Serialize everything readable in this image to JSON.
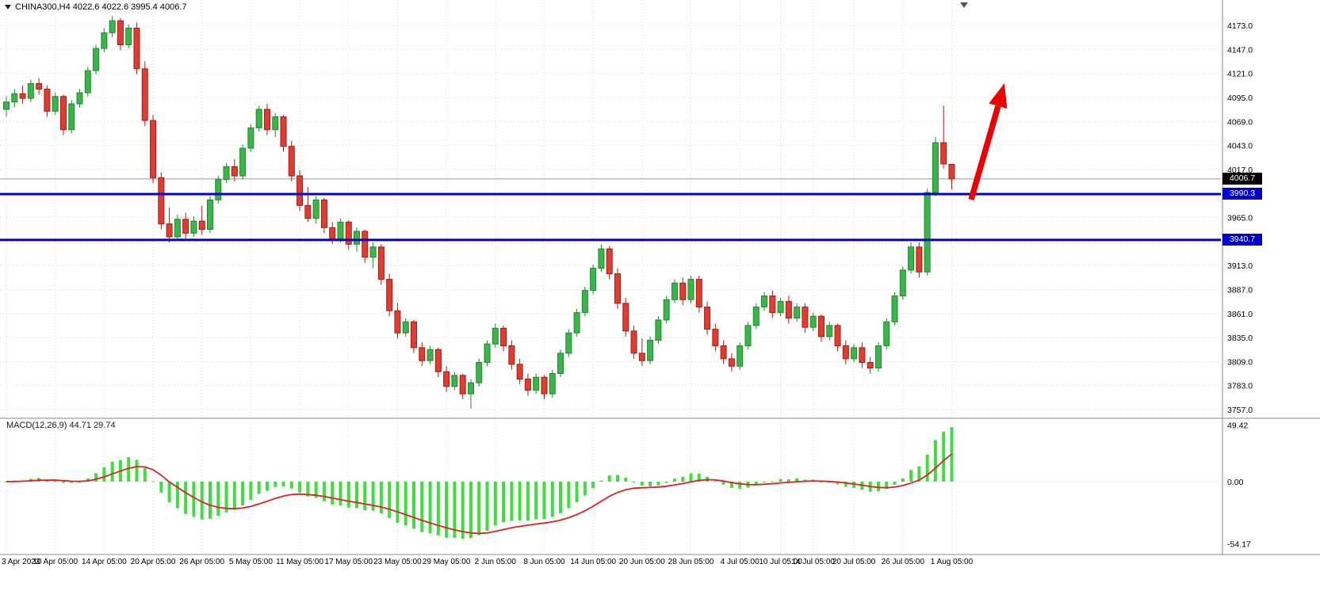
{
  "chart_data": {
    "type": "candlestick",
    "symbol": "CHINA300",
    "timeframe": "H4",
    "header_text": "CHINA300,H4 4022.6 4022.6 3995.4 4006.7",
    "last_candle": {
      "open": "4022.6",
      "high": "4022.6",
      "low": "3995.4",
      "close": "4006.7"
    },
    "price_axis": {
      "labels": [
        "4173.0",
        "4147.0",
        "4121.0",
        "4095.0",
        "4069.0",
        "4043.0",
        "4017.0",
        "3991.0",
        "3965.0",
        "3939.0",
        "3913.0",
        "3887.0",
        "3861.0",
        "3835.0",
        "3809.0",
        "3783.0",
        "3757.0"
      ],
      "min": 3757.0,
      "max": 4173.0,
      "step": 26.0
    },
    "time_axis": {
      "labels": [
        "3 Apr 2023",
        "10 Apr 05:00",
        "14 Apr 05:00",
        "20 Apr 05:00",
        "26 Apr 05:00",
        "5 May 05:00",
        "11 May 05:00",
        "17 May 05:00",
        "23 May 05:00",
        "29 May 05:00",
        "2 Jun 05:00",
        "8 Jun 05:00",
        "14 Jun 05:00",
        "20 Jun 05:00",
        "28 Jun 05:00",
        "4 Jul 05:00",
        "10 Jul 05:00",
        "14 Jul 05:00",
        "20 Jul 05:00",
        "26 Jul 05:00",
        "1 Aug 05:00"
      ],
      "candle_index": [
        0,
        6,
        12,
        18,
        24,
        30,
        36,
        42,
        48,
        54,
        60,
        66,
        72,
        78,
        84,
        90,
        95,
        99,
        104,
        110,
        116
      ]
    },
    "candles": [
      [
        4082,
        4096,
        4074,
        4090
      ],
      [
        4090,
        4104,
        4084,
        4099
      ],
      [
        4099,
        4108,
        4088,
        4094
      ],
      [
        4094,
        4114,
        4090,
        4110
      ],
      [
        4110,
        4116,
        4098,
        4104
      ],
      [
        4104,
        4108,
        4074,
        4080
      ],
      [
        4080,
        4100,
        4076,
        4096
      ],
      [
        4096,
        4098,
        4054,
        4060
      ],
      [
        4060,
        4092,
        4056,
        4088
      ],
      [
        4088,
        4104,
        4084,
        4100
      ],
      [
        4100,
        4128,
        4096,
        4124
      ],
      [
        4124,
        4152,
        4120,
        4148
      ],
      [
        4148,
        4170,
        4144,
        4165
      ],
      [
        4165,
        4183,
        4160,
        4178
      ],
      [
        4178,
        4181,
        4146,
        4152
      ],
      [
        4152,
        4174,
        4148,
        4170
      ],
      [
        4170,
        4176,
        4120,
        4126
      ],
      [
        4126,
        4134,
        4064,
        4070
      ],
      [
        4070,
        4076,
        4002,
        4008
      ],
      [
        4008,
        4014,
        3952,
        3958
      ],
      [
        3958,
        3976,
        3938,
        3944
      ],
      [
        3944,
        3968,
        3940,
        3963
      ],
      [
        3963,
        3970,
        3942,
        3948
      ],
      [
        3948,
        3966,
        3944,
        3961
      ],
      [
        3961,
        3978,
        3946,
        3952
      ],
      [
        3952,
        3988,
        3948,
        3984
      ],
      [
        3984,
        4010,
        3980,
        4006
      ],
      [
        4006,
        4024,
        4002,
        4020
      ],
      [
        4020,
        4028,
        4004,
        4010
      ],
      [
        4010,
        4044,
        4006,
        4040
      ],
      [
        4040,
        4066,
        4036,
        4062
      ],
      [
        4062,
        4086,
        4058,
        4082
      ],
      [
        4082,
        4088,
        4054,
        4060
      ],
      [
        4060,
        4078,
        4052,
        4074
      ],
      [
        4074,
        4076,
        4036,
        4042
      ],
      [
        4042,
        4048,
        4004,
        4010
      ],
      [
        4010,
        4016,
        3972,
        3978
      ],
      [
        3978,
        3998,
        3960,
        3964
      ],
      [
        3964,
        3988,
        3958,
        3984
      ],
      [
        3984,
        3986,
        3948,
        3954
      ],
      [
        3954,
        3960,
        3936,
        3942
      ],
      [
        3942,
        3964,
        3938,
        3960
      ],
      [
        3960,
        3962,
        3930,
        3936
      ],
      [
        3936,
        3954,
        3928,
        3950
      ],
      [
        3950,
        3952,
        3916,
        3922
      ],
      [
        3922,
        3938,
        3910,
        3933
      ],
      [
        3933,
        3936,
        3892,
        3898
      ],
      [
        3898,
        3904,
        3858,
        3864
      ],
      [
        3864,
        3872,
        3834,
        3840
      ],
      [
        3840,
        3856,
        3836,
        3852
      ],
      [
        3852,
        3854,
        3818,
        3824
      ],
      [
        3824,
        3830,
        3804,
        3810
      ],
      [
        3810,
        3826,
        3806,
        3822
      ],
      [
        3822,
        3824,
        3792,
        3798
      ],
      [
        3798,
        3804,
        3776,
        3782
      ],
      [
        3782,
        3798,
        3778,
        3794
      ],
      [
        3794,
        3796,
        3768,
        3774
      ],
      [
        3774,
        3790,
        3758,
        3786
      ],
      [
        3786,
        3812,
        3782,
        3808
      ],
      [
        3808,
        3832,
        3804,
        3828
      ],
      [
        3828,
        3850,
        3824,
        3845
      ],
      [
        3845,
        3848,
        3820,
        3826
      ],
      [
        3826,
        3832,
        3800,
        3806
      ],
      [
        3806,
        3812,
        3784,
        3790
      ],
      [
        3790,
        3796,
        3772,
        3778
      ],
      [
        3778,
        3796,
        3774,
        3792
      ],
      [
        3792,
        3794,
        3768,
        3774
      ],
      [
        3774,
        3800,
        3770,
        3796
      ],
      [
        3796,
        3822,
        3792,
        3818
      ],
      [
        3818,
        3844,
        3814,
        3840
      ],
      [
        3840,
        3866,
        3836,
        3862
      ],
      [
        3862,
        3890,
        3858,
        3886
      ],
      [
        3886,
        3914,
        3882,
        3910
      ],
      [
        3910,
        3936,
        3906,
        3931
      ],
      [
        3931,
        3934,
        3898,
        3904
      ],
      [
        3904,
        3910,
        3866,
        3872
      ],
      [
        3872,
        3878,
        3836,
        3842
      ],
      [
        3842,
        3848,
        3812,
        3818
      ],
      [
        3818,
        3834,
        3804,
        3810
      ],
      [
        3810,
        3836,
        3806,
        3832
      ],
      [
        3832,
        3858,
        3828,
        3854
      ],
      [
        3854,
        3880,
        3850,
        3876
      ],
      [
        3876,
        3898,
        3872,
        3894
      ],
      [
        3894,
        3900,
        3870,
        3876
      ],
      [
        3876,
        3902,
        3872,
        3898
      ],
      [
        3898,
        3902,
        3862,
        3868
      ],
      [
        3868,
        3874,
        3838,
        3844
      ],
      [
        3844,
        3850,
        3820,
        3826
      ],
      [
        3826,
        3832,
        3806,
        3812
      ],
      [
        3812,
        3818,
        3798,
        3804
      ],
      [
        3804,
        3830,
        3800,
        3826
      ],
      [
        3826,
        3852,
        3822,
        3848
      ],
      [
        3848,
        3872,
        3844,
        3868
      ],
      [
        3868,
        3884,
        3864,
        3880
      ],
      [
        3880,
        3886,
        3856,
        3862
      ],
      [
        3862,
        3878,
        3858,
        3874
      ],
      [
        3874,
        3880,
        3850,
        3856
      ],
      [
        3856,
        3872,
        3852,
        3868
      ],
      [
        3868,
        3872,
        3840,
        3846
      ],
      [
        3846,
        3862,
        3842,
        3858
      ],
      [
        3858,
        3860,
        3830,
        3836
      ],
      [
        3836,
        3852,
        3832,
        3848
      ],
      [
        3848,
        3850,
        3820,
        3826
      ],
      [
        3826,
        3832,
        3806,
        3812
      ],
      [
        3812,
        3828,
        3808,
        3824
      ],
      [
        3824,
        3830,
        3802,
        3808
      ],
      [
        3808,
        3814,
        3796,
        3802
      ],
      [
        3802,
        3830,
        3798,
        3826
      ],
      [
        3826,
        3856,
        3822,
        3852
      ],
      [
        3852,
        3884,
        3848,
        3880
      ],
      [
        3880,
        3912,
        3876,
        3908
      ],
      [
        3908,
        3938,
        3904,
        3933
      ],
      [
        3933,
        3938,
        3900,
        3906
      ],
      [
        3906,
        3996,
        3902,
        3992
      ],
      [
        3992,
        4052,
        3988,
        4046
      ],
      [
        4046,
        4086,
        4018,
        4023
      ],
      [
        4022.6,
        4022.6,
        3995.4,
        4006.7
      ]
    ],
    "hlines": [
      {
        "price": 3990.3,
        "label": "3990.3",
        "color": "#0000cc"
      },
      {
        "price": 3940.7,
        "label": "3940.7",
        "color": "#0000cc"
      }
    ],
    "last_price": {
      "value": 4006.7,
      "label": "4006.7"
    },
    "macd": {
      "header_text": "MACD(12,26,9) 44.71 29.74",
      "name": "MACD",
      "params": "12,26,9",
      "main_value": 44.71,
      "signal_value": 29.74,
      "axis_labels": [
        "49.42",
        "0.00",
        "-54.17"
      ],
      "range": [
        -54.17,
        49.42
      ]
    },
    "annotations": [
      {
        "type": "arrow-up",
        "description": "red upward trend arrow near breakout",
        "color": "#ee0000"
      }
    ],
    "colors": {
      "bull": "#3ab54a",
      "bull_border": "#1d8a2d",
      "bear": "#e03c31",
      "bear_border": "#a81c12",
      "macd_bar": "#3fdd3f",
      "macd_signal": "#e02020",
      "grid": "#d9d9d9",
      "separator": "#8a8a8a",
      "last_price_line": "#9a9a9a",
      "axis_text": "#000000",
      "arrow": "#ee0000",
      "tag_last_bg": "#000000",
      "tag_line_bg": "#0000cc"
    }
  }
}
